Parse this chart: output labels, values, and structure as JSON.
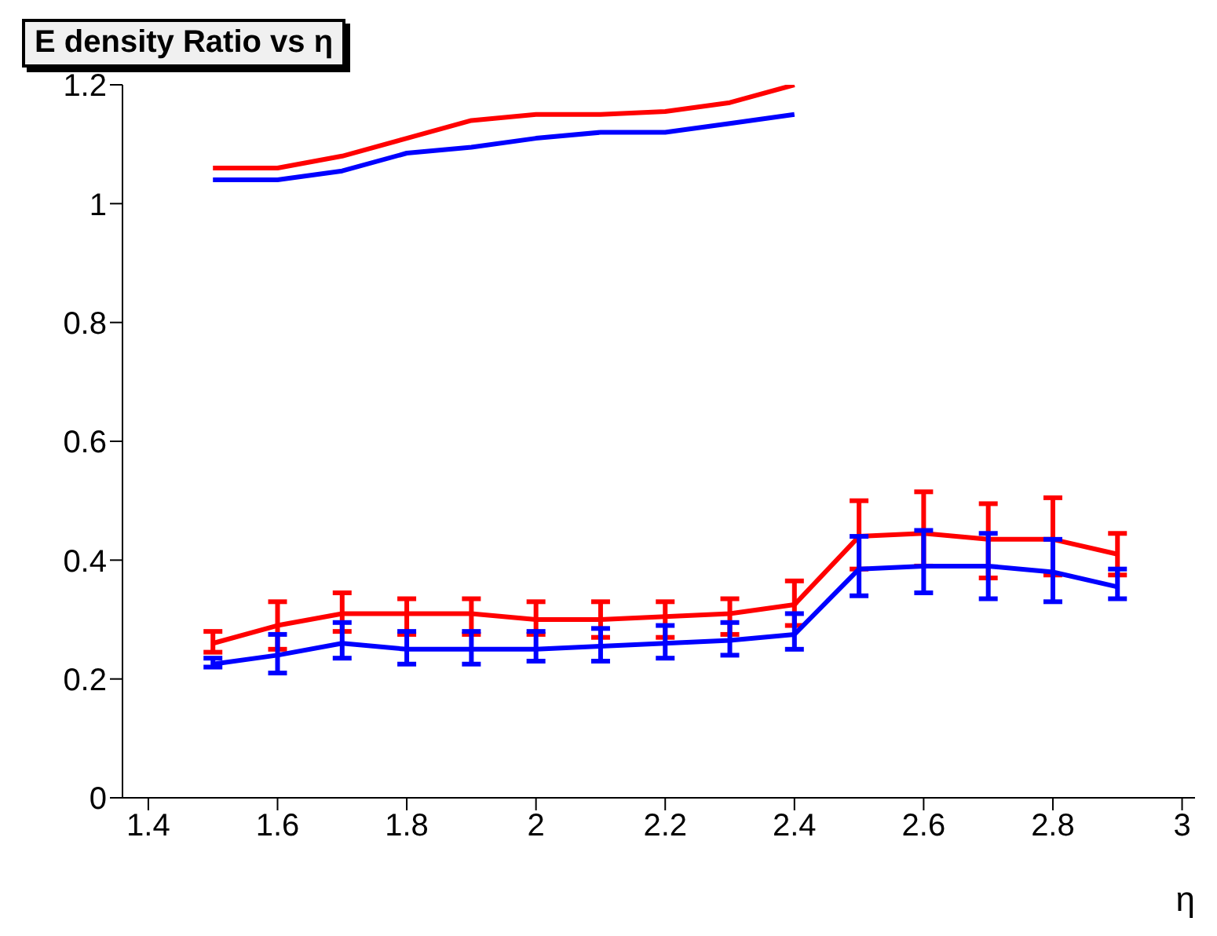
{
  "chart_data": {
    "type": "line",
    "title": "E density Ratio vs η",
    "xlabel": "η",
    "x": [
      1.5,
      1.6,
      1.7,
      1.8,
      1.9,
      2.0,
      2.1,
      2.2,
      2.3,
      2.4,
      2.5,
      2.6,
      2.7,
      2.8,
      2.9
    ],
    "xlim": [
      1.36,
      3.02
    ],
    "xticks": [
      1.4,
      1.6,
      1.8,
      2,
      2.2,
      2.4,
      2.6,
      2.8,
      3
    ],
    "ylim": [
      0,
      1.2
    ],
    "yticks": [
      0,
      0.2,
      0.4,
      0.6,
      0.8,
      1,
      1.2
    ],
    "grid": false,
    "legend": false,
    "marker": "none",
    "line_style": "solid",
    "series": [
      {
        "color": "#ff0000",
        "values": [
          1.06,
          1.06,
          1.08,
          1.11,
          1.14,
          1.15,
          1.15,
          1.155,
          1.17,
          1.2,
          null,
          null,
          null,
          null,
          null
        ]
      },
      {
        "color": "#0000ff",
        "values": [
          1.04,
          1.04,
          1.055,
          1.085,
          1.095,
          1.11,
          1.12,
          1.12,
          1.135,
          1.15,
          null,
          null,
          null,
          null,
          null
        ]
      },
      {
        "color": "#ff0000",
        "values": [
          0.26,
          0.29,
          0.31,
          0.31,
          0.31,
          0.3,
          0.3,
          0.305,
          0.31,
          0.325,
          0.44,
          0.445,
          0.435,
          0.435,
          0.41
        ],
        "errors": [
          [
            0.245,
            0.28
          ],
          [
            0.25,
            0.33
          ],
          [
            0.28,
            0.345
          ],
          [
            0.275,
            0.335
          ],
          [
            0.275,
            0.335
          ],
          [
            0.275,
            0.33
          ],
          [
            0.27,
            0.33
          ],
          [
            0.27,
            0.33
          ],
          [
            0.275,
            0.335
          ],
          [
            0.29,
            0.365
          ],
          [
            0.385,
            0.5
          ],
          [
            0.39,
            0.515
          ],
          [
            0.37,
            0.495
          ],
          [
            0.375,
            0.505
          ],
          [
            0.375,
            0.445
          ]
        ]
      },
      {
        "color": "#0000ff",
        "values": [
          0.225,
          0.24,
          0.26,
          0.25,
          0.25,
          0.25,
          0.255,
          0.26,
          0.265,
          0.275,
          0.385,
          0.39,
          0.39,
          0.38,
          0.355
        ],
        "errors": [
          [
            0.22,
            0.235
          ],
          [
            0.21,
            0.275
          ],
          [
            0.235,
            0.295
          ],
          [
            0.225,
            0.28
          ],
          [
            0.225,
            0.28
          ],
          [
            0.23,
            0.28
          ],
          [
            0.23,
            0.285
          ],
          [
            0.235,
            0.29
          ],
          [
            0.24,
            0.295
          ],
          [
            0.25,
            0.31
          ],
          [
            0.34,
            0.44
          ],
          [
            0.345,
            0.45
          ],
          [
            0.335,
            0.445
          ],
          [
            0.33,
            0.435
          ],
          [
            0.335,
            0.385
          ]
        ]
      }
    ]
  }
}
